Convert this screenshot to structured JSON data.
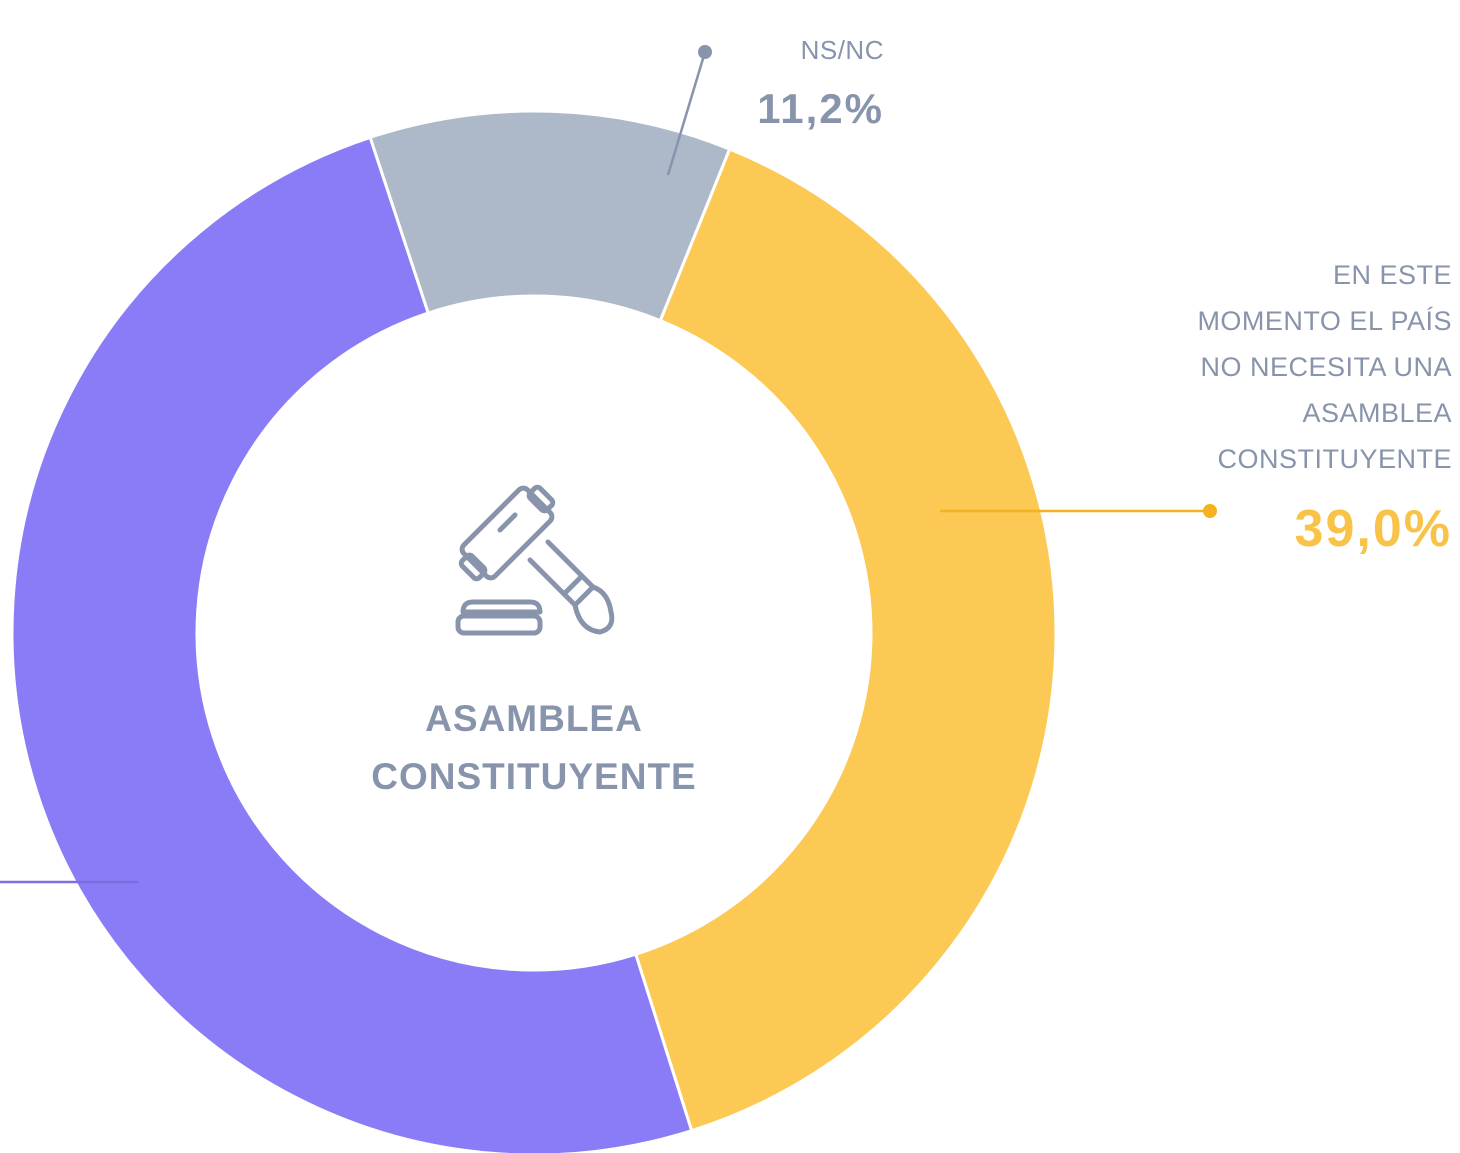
{
  "chart_data": {
    "type": "donut",
    "title": "ASAMBLEA CONSTITUYENTE",
    "categories": [
      "NS/NC",
      "EN ESTE\nMOMENTO EL PAÍS\nNO NECESITA UNA\nASAMBLEA\nCONSTITUYENTE",
      null
    ],
    "values": [
      11.2,
      39.0,
      49.8
    ],
    "value_labels": [
      "11,2%",
      "39,0%",
      null
    ],
    "colors": [
      "#adb8c9",
      "#fcc954",
      "#8a7cf6"
    ]
  }
}
